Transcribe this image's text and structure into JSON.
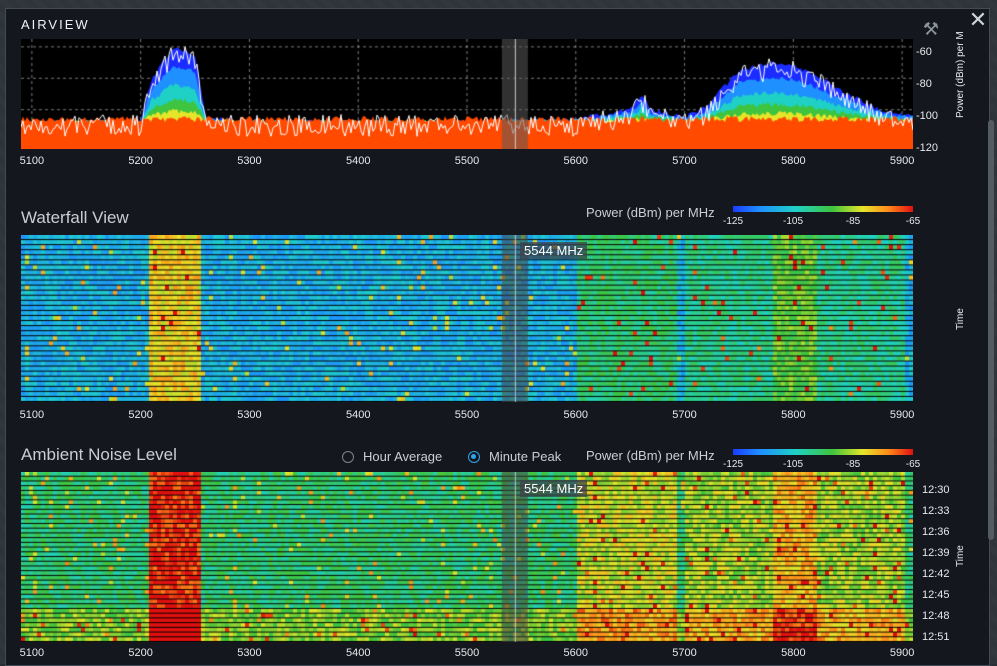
{
  "window": {
    "title": "AIRVIEW",
    "close_glyph": "✕",
    "tools_icon": "wrench-screwdriver-icon"
  },
  "frequency_axis": {
    "ticks": [
      "5100",
      "5200",
      "5300",
      "5400",
      "5500",
      "5600",
      "5700",
      "5800",
      "5900"
    ],
    "min": 5090,
    "max": 5910
  },
  "spectrum": {
    "ylabel": "Power (dBm) per M",
    "yticks": [
      "-60",
      "-80",
      "-100",
      "-120"
    ],
    "ylim": [
      -125,
      -55
    ]
  },
  "waterfall": {
    "title": "Waterfall View",
    "legend_title": "Power (dBm) per MHz",
    "legend_ticks": [
      "-125",
      "-105",
      "-85",
      "-65"
    ],
    "time_label": "Time",
    "marker": "5544 MHz"
  },
  "ambient": {
    "title": "Ambient Noise Level",
    "options": [
      {
        "label": "Hour Average",
        "selected": false
      },
      {
        "label": "Minute Peak",
        "selected": true
      }
    ],
    "legend_title": "Power (dBm) per MHz",
    "legend_ticks": [
      "-125",
      "-105",
      "-85",
      "-65"
    ],
    "time_label": "Time",
    "marker": "5544 MHz",
    "time_ticks": [
      "12:30",
      "12:33",
      "12:36",
      "12:39",
      "12:42",
      "12:45",
      "12:48",
      "12:51"
    ]
  },
  "chart_data": [
    {
      "type": "area",
      "name": "spectrum",
      "x_unit": "MHz",
      "x": [
        5090,
        5150,
        5200,
        5210,
        5230,
        5250,
        5260,
        5300,
        5400,
        5500,
        5540,
        5600,
        5650,
        5660,
        5670,
        5700,
        5720,
        5750,
        5780,
        5800,
        5820,
        5850,
        5880,
        5910
      ],
      "series": [
        {
          "values": [
            -108,
            -108,
            -107,
            -80,
            -60,
            -65,
            -105,
            -107,
            -108,
            -108,
            -107,
            -106,
            -100,
            -90,
            -100,
            -105,
            -98,
            -75,
            -70,
            -72,
            -78,
            -90,
            -100,
            -104
          ]
        }
      ],
      "ylim": [
        -125,
        -55
      ],
      "cursor_x": 5544
    },
    {
      "type": "heatmap",
      "name": "waterfall",
      "x_range": [
        5090,
        5910
      ],
      "rows": 33,
      "cursor_x": 5544,
      "value_range": [
        -125,
        -65
      ]
    },
    {
      "type": "heatmap",
      "name": "ambient-noise",
      "x_range": [
        5090,
        5910
      ],
      "rows": 36,
      "cursor_x": 5544,
      "value_range": [
        -125,
        -65
      ]
    }
  ],
  "colors": {
    "accent": "#2fa4e7",
    "heat_low": "#1a3cff",
    "heat_high": "#e01010",
    "noise_floor": "#ff4a00"
  }
}
